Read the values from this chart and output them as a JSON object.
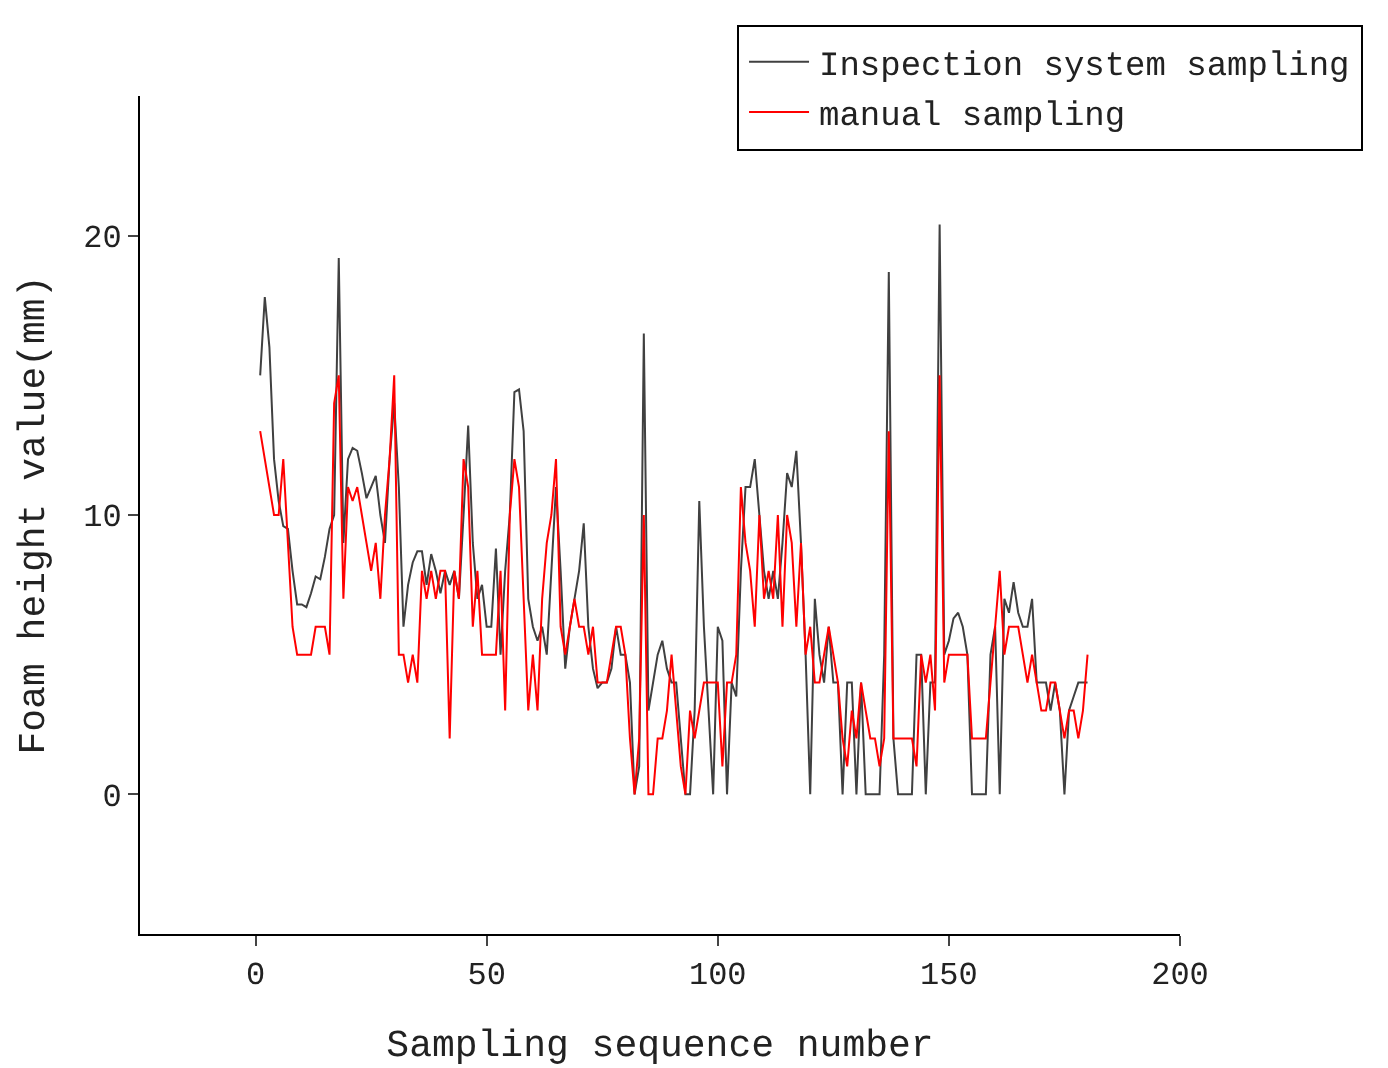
{
  "chart_data": {
    "type": "line",
    "xlabel": "Sampling sequence number",
    "ylabel": "Foam height value(mm)",
    "x": [
      1,
      2,
      3,
      4,
      5,
      6,
      7,
      8,
      9,
      10,
      11,
      12,
      13,
      14,
      15,
      16,
      17,
      18,
      19,
      20,
      21,
      22,
      23,
      24,
      25,
      26,
      27,
      28,
      29,
      30,
      31,
      32,
      33,
      34,
      35,
      36,
      37,
      38,
      39,
      40,
      41,
      42,
      43,
      44,
      45,
      46,
      47,
      48,
      49,
      50,
      51,
      52,
      53,
      54,
      55,
      56,
      57,
      58,
      59,
      60,
      61,
      62,
      63,
      64,
      65,
      66,
      67,
      68,
      69,
      70,
      71,
      72,
      73,
      74,
      75,
      76,
      77,
      78,
      79,
      80,
      81,
      82,
      83,
      84,
      85,
      86,
      87,
      88,
      89,
      90,
      91,
      92,
      93,
      94,
      95,
      96,
      97,
      98,
      99,
      100,
      101,
      102,
      103,
      104,
      105,
      106,
      107,
      108,
      109,
      110,
      111,
      112,
      113,
      114,
      115,
      116,
      117,
      118,
      119,
      120,
      121,
      122,
      123,
      124,
      125,
      126,
      127,
      128,
      129,
      130,
      131,
      132,
      133,
      134,
      135,
      136,
      137,
      138,
      139,
      140,
      141,
      142,
      143,
      144,
      145,
      146,
      147,
      148,
      149,
      150,
      151,
      152,
      153,
      154,
      155,
      156,
      157,
      158,
      159,
      160,
      161,
      162,
      163,
      164,
      165,
      166,
      167,
      168,
      169,
      170,
      171,
      172,
      173,
      174,
      175,
      176,
      177,
      178,
      179,
      180
    ],
    "series": [
      {
        "name": "Inspection system sampling",
        "color": "#404040",
        "values": [
          15,
          17.8,
          16,
          12,
          10.5,
          9.6,
          9.5,
          8,
          6.8,
          6.8,
          6.7,
          7.2,
          7.8,
          7.7,
          8.5,
          9.5,
          10,
          19.2,
          9,
          12,
          12.4,
          12.3,
          11.5,
          10.6,
          11,
          11.4,
          10,
          9,
          12,
          14,
          11,
          6,
          7.5,
          8.3,
          8.7,
          8.7,
          7.5,
          8.6,
          8,
          7.2,
          8,
          7.5,
          8,
          7,
          10,
          13.2,
          9,
          7,
          7.5,
          6,
          6,
          8.8,
          5,
          8,
          10,
          14.4,
          14.5,
          13,
          7,
          6,
          5.5,
          6,
          5,
          8,
          11,
          8,
          4.5,
          6,
          7,
          8,
          9.7,
          6,
          4.5,
          3.8,
          4,
          4,
          4.5,
          6,
          5,
          5,
          4,
          0,
          1,
          16.5,
          3,
          4,
          5,
          5.5,
          4.5,
          4,
          4,
          2,
          0,
          0,
          3,
          10.5,
          6,
          3,
          0,
          6,
          5.5,
          0,
          4,
          3.5,
          8,
          11,
          11,
          12,
          10,
          8,
          7,
          8,
          7,
          9,
          11.5,
          11,
          12.3,
          9,
          5,
          0,
          7,
          5,
          4,
          6,
          4,
          4,
          0,
          4,
          4,
          0,
          4,
          0,
          0,
          0,
          0,
          5,
          18.7,
          2,
          0,
          0,
          0,
          0,
          5,
          5,
          0,
          4,
          4,
          20.4,
          5,
          5.5,
          6.3,
          6.5,
          6,
          5,
          0,
          0,
          0,
          0,
          5,
          6,
          0,
          7,
          6.5,
          7.6,
          6.5,
          6,
          6,
          7,
          4,
          4,
          4,
          3,
          4,
          3,
          0,
          3,
          3.5,
          4,
          4,
          4
        ]
      },
      {
        "name": "manual sampling",
        "color": "#ff0000",
        "values": [
          13,
          12,
          11,
          10,
          10,
          12,
          9,
          6,
          5,
          5,
          5,
          5,
          6,
          6,
          6,
          5,
          14,
          15,
          7,
          11,
          10.5,
          11,
          10,
          9,
          8,
          9,
          7,
          10,
          12,
          15,
          5,
          5,
          4,
          5,
          4,
          8,
          7,
          8,
          7,
          8,
          8,
          2,
          8,
          7,
          12,
          11,
          6,
          8,
          5,
          5,
          5,
          5,
          8,
          3,
          10,
          12,
          11,
          7,
          3,
          5,
          3,
          7,
          9,
          10,
          12,
          6,
          5,
          6,
          7,
          6,
          6,
          5,
          6,
          4,
          4,
          4,
          5,
          6,
          6,
          5,
          2,
          0,
          2,
          10,
          0,
          0,
          2,
          2,
          3,
          5,
          3,
          1,
          0,
          3,
          2,
          3,
          4,
          4,
          4,
          4,
          1,
          4,
          4,
          5,
          11,
          9,
          8,
          6,
          10,
          7,
          8,
          7,
          10,
          6,
          10,
          9,
          6,
          9,
          5,
          6,
          4,
          4,
          5,
          6,
          5,
          4,
          2,
          1,
          3,
          2,
          4,
          3,
          2,
          2,
          1,
          2,
          13,
          2,
          2,
          2,
          2,
          2,
          1,
          5,
          4,
          5,
          3,
          15,
          4,
          5,
          5,
          5,
          5,
          5,
          2,
          2,
          2,
          2,
          4,
          6,
          8,
          5,
          6,
          6,
          6,
          5,
          4,
          5,
          4,
          3,
          3,
          4,
          4,
          3,
          2,
          3,
          3,
          2,
          3,
          5
        ]
      }
    ],
    "xlim": [
      -25,
      200
    ],
    "xticks": [
      0,
      50,
      100,
      150,
      200
    ],
    "ylim": [
      -5,
      25
    ],
    "yticks": [
      0,
      10,
      20
    ],
    "grid": false,
    "legend": "top right",
    "marker": "none",
    "line_style": "solid"
  }
}
